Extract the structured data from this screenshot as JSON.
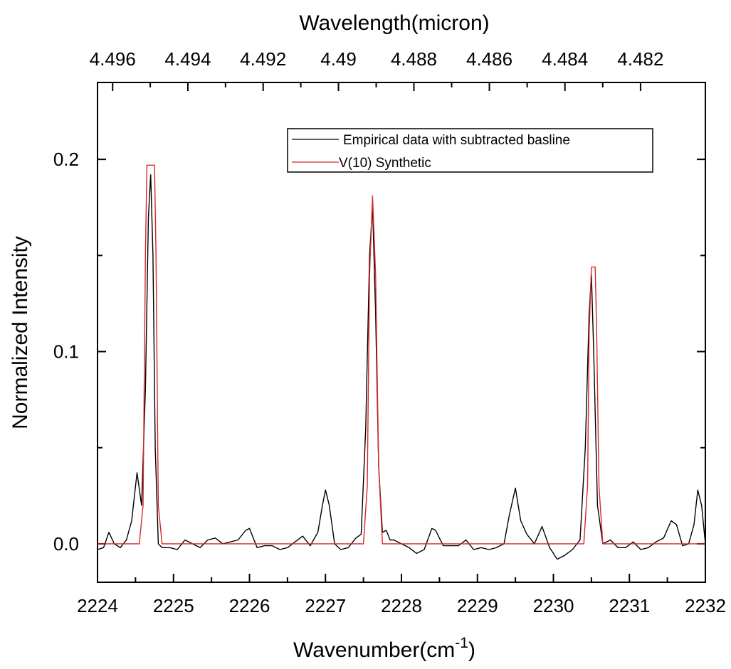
{
  "chart_data": {
    "type": "line",
    "xlabel": "Wavenumber(cm",
    "xlabel_sup": "-1",
    "xlabel_suffix": ")",
    "ylabel": "Normalized Intensity",
    "top_xlabel": "Wavelength(micron)",
    "xlim": [
      2224,
      2232
    ],
    "ylim": [
      -0.02,
      0.24
    ],
    "x_ticks": [
      2224,
      2225,
      2226,
      2227,
      2228,
      2229,
      2230,
      2231,
      2232
    ],
    "x_tick_labels": [
      "2224",
      "2225",
      "2226",
      "2227",
      "2228",
      "2229",
      "2230",
      "2231",
      "2232"
    ],
    "y_ticks": [
      0.0,
      0.1,
      0.2
    ],
    "y_tick_labels": [
      "0.0",
      "0.1",
      "0.2"
    ],
    "y_minor_ticks": [
      0.05,
      0.15
    ],
    "top_ticks_micron": [
      4.496,
      4.494,
      4.492,
      4.49,
      4.488,
      4.486,
      4.484,
      4.482
    ],
    "top_tick_labels": [
      "4.496",
      "4.494",
      "4.492",
      "4.49",
      "4.488",
      "4.486",
      "4.484",
      "4.482"
    ],
    "grid": false,
    "legend_position": "top-right",
    "series": [
      {
        "name": "Empirical data with subtracted basline",
        "color": "#000000",
        "x": [
          2224.0,
          2224.08,
          2224.15,
          2224.22,
          2224.3,
          2224.38,
          2224.45,
          2224.52,
          2224.58,
          2224.63,
          2224.67,
          2224.7,
          2224.73,
          2224.76,
          2224.8,
          2224.85,
          2224.95,
          2225.05,
          2225.15,
          2225.25,
          2225.35,
          2225.45,
          2225.55,
          2225.65,
          2225.75,
          2225.85,
          2225.95,
          2226.0,
          2226.1,
          2226.2,
          2226.3,
          2226.4,
          2226.5,
          2226.6,
          2226.7,
          2226.8,
          2226.9,
          2226.96,
          2227.0,
          2227.05,
          2227.12,
          2227.2,
          2227.3,
          2227.4,
          2227.47,
          2227.53,
          2227.58,
          2227.62,
          2227.66,
          2227.7,
          2227.75,
          2227.8,
          2227.85,
          2227.9,
          2228.0,
          2228.1,
          2228.2,
          2228.3,
          2228.4,
          2228.45,
          2228.55,
          2228.65,
          2228.75,
          2228.85,
          2228.95,
          2229.05,
          2229.15,
          2229.25,
          2229.35,
          2229.42,
          2229.5,
          2229.57,
          2229.65,
          2229.75,
          2229.85,
          2229.95,
          2230.05,
          2230.15,
          2230.25,
          2230.35,
          2230.42,
          2230.47,
          2230.5,
          2230.53,
          2230.58,
          2230.65,
          2230.75,
          2230.85,
          2230.95,
          2231.05,
          2231.15,
          2231.25,
          2231.35,
          2231.45,
          2231.55,
          2231.62,
          2231.7,
          2231.78,
          2231.85,
          2231.9,
          2231.95,
          2232.0
        ],
        "y": [
          -0.003,
          -0.002,
          0.006,
          0.0,
          -0.002,
          0.002,
          0.012,
          0.037,
          0.02,
          0.08,
          0.17,
          0.192,
          0.15,
          0.05,
          0.0,
          -0.002,
          -0.002,
          -0.003,
          0.002,
          0.0,
          -0.002,
          0.002,
          0.003,
          0.0,
          0.001,
          0.002,
          0.007,
          0.008,
          -0.002,
          -0.001,
          -0.001,
          -0.003,
          -0.002,
          0.001,
          0.004,
          -0.001,
          0.006,
          0.02,
          0.028,
          0.02,
          0.0,
          -0.003,
          -0.002,
          0.003,
          0.005,
          0.06,
          0.15,
          0.176,
          0.12,
          0.04,
          0.006,
          0.007,
          0.002,
          0.002,
          0.0,
          -0.002,
          -0.005,
          -0.003,
          0.008,
          0.007,
          -0.001,
          -0.001,
          -0.001,
          0.002,
          -0.003,
          -0.002,
          -0.003,
          -0.002,
          0.0,
          0.015,
          0.029,
          0.012,
          0.005,
          0.0,
          0.009,
          -0.002,
          -0.008,
          -0.006,
          -0.003,
          0.002,
          0.05,
          0.12,
          0.14,
          0.1,
          0.02,
          0.0,
          0.002,
          -0.002,
          -0.002,
          0.001,
          -0.003,
          -0.002,
          0.001,
          0.003,
          0.012,
          0.01,
          -0.001,
          0.0,
          0.01,
          0.028,
          0.02,
          0.0
        ]
      },
      {
        "name": "V(10) Synthetic",
        "color": "#d62728",
        "x": [
          2224.0,
          2224.55,
          2224.6,
          2224.63,
          2224.65,
          2224.75,
          2224.77,
          2224.8,
          2224.85,
          2227.5,
          2227.55,
          2227.58,
          2227.62,
          2227.66,
          2227.7,
          2227.75,
          2230.4,
          2230.45,
          2230.47,
          2230.5,
          2230.55,
          2230.57,
          2230.6,
          2230.65,
          2232.0
        ],
        "y": [
          0.0,
          0.0,
          0.02,
          0.15,
          0.197,
          0.197,
          0.15,
          0.02,
          0.0,
          0.0,
          0.03,
          0.14,
          0.181,
          0.14,
          0.04,
          0.0,
          0.0,
          0.03,
          0.11,
          0.144,
          0.144,
          0.11,
          0.03,
          0.0,
          0.0
        ]
      }
    ]
  }
}
